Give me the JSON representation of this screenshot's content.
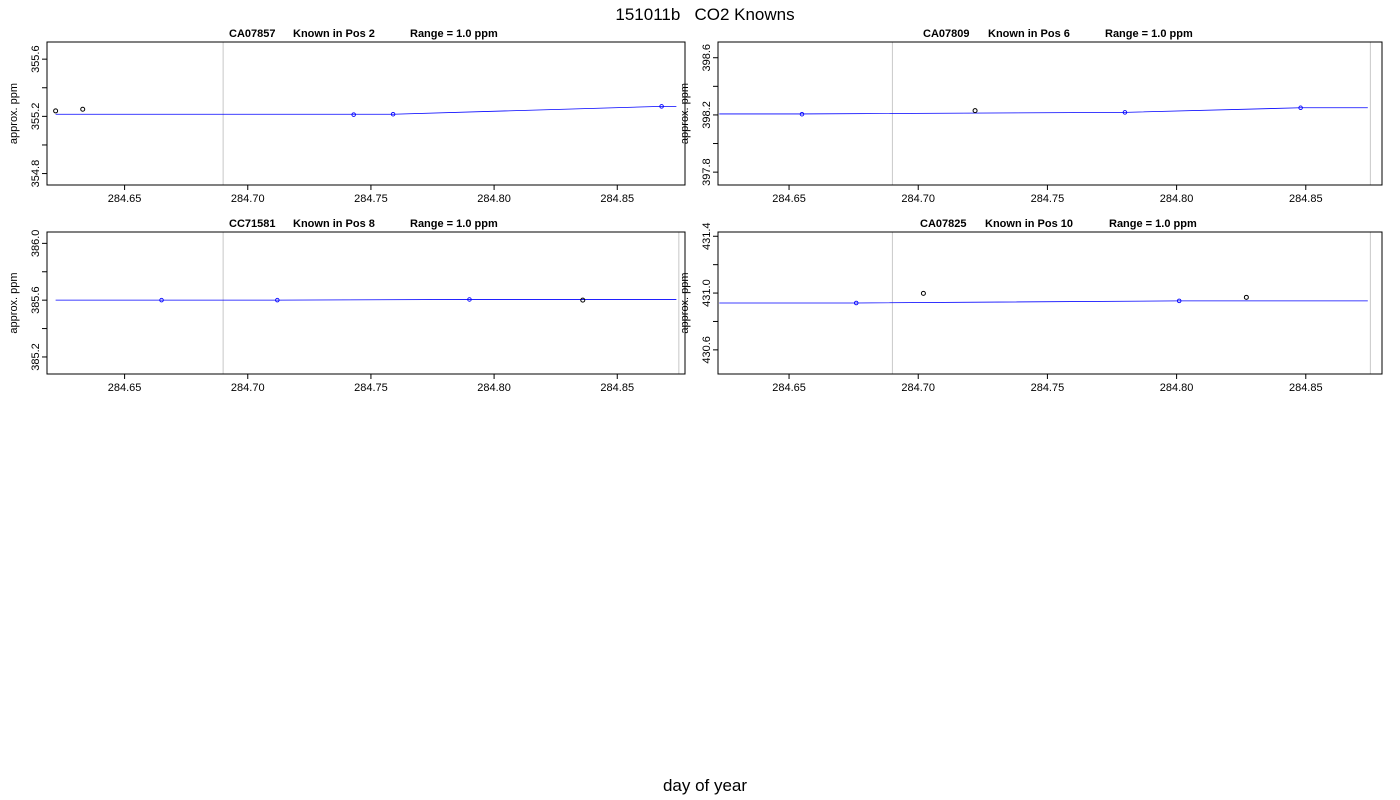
{
  "page": {
    "title": "151011b   CO2 Knowns",
    "xlabel": "day of year"
  },
  "colors": {
    "fit_line": "#0000ff",
    "fit_point": "#0000ff",
    "raw_point": "#000000",
    "vline": "#c8c8c8",
    "frame": "#000000"
  },
  "chart_data": [
    {
      "type": "scatter",
      "title_parts": [
        "CA07857",
        "Known in Pos 2",
        "Range = 1.0 ppm"
      ],
      "ylabel": "approx. ppm",
      "xlim": [
        284.6185,
        284.8775
      ],
      "ylim": [
        354.72,
        355.72
      ],
      "xticks": [
        "284.65",
        "284.70",
        "284.75",
        "284.80",
        "284.85"
      ],
      "yticks": [
        "354.8",
        "355.2",
        "355.6"
      ],
      "vlines": [
        284.69
      ],
      "grid": false,
      "fit_line": {
        "x": [
          284.622,
          284.759,
          284.868,
          284.874
        ],
        "y": [
          355.215,
          355.215,
          355.27,
          355.27
        ]
      },
      "fit_points": {
        "x": [
          284.743,
          284.759,
          284.868
        ],
        "y": [
          355.212,
          355.215,
          355.27
        ]
      },
      "raw_points": {
        "x": [
          284.622,
          284.633
        ],
        "y": [
          355.238,
          355.25
        ]
      }
    },
    {
      "type": "scatter",
      "title_parts": [
        "CA07809",
        "Known in Pos 6",
        "Range = 1.0 ppm"
      ],
      "ylabel": "approx. ppm",
      "xlim": [
        284.6225,
        284.8795
      ],
      "ylim": [
        397.71,
        398.71
      ],
      "xticks": [
        "284.65",
        "284.70",
        "284.75",
        "284.80",
        "284.85"
      ],
      "yticks": [
        "397.8",
        "398.2",
        "398.6"
      ],
      "vlines": [
        284.69,
        284.875
      ],
      "grid": false,
      "fit_line": {
        "x": [
          284.623,
          284.655,
          284.78,
          284.848,
          284.874
        ],
        "y": [
          398.207,
          398.207,
          398.218,
          398.25,
          398.25
        ]
      },
      "fit_points": {
        "x": [
          284.655,
          284.78,
          284.848
        ],
        "y": [
          398.205,
          398.218,
          398.25
        ]
      },
      "raw_points": {
        "x": [
          284.722
        ],
        "y": [
          398.23
        ]
      }
    },
    {
      "type": "scatter",
      "title_parts": [
        "CC71581",
        "Known in Pos 8",
        "Range = 1.0 ppm"
      ],
      "ylabel": "approx. ppm",
      "xlim": [
        284.6185,
        284.8775
      ],
      "ylim": [
        385.08,
        386.08
      ],
      "xticks": [
        "284.65",
        "284.70",
        "284.75",
        "284.80",
        "284.85"
      ],
      "yticks": [
        "385.2",
        "385.6",
        "386.0"
      ],
      "vlines": [
        284.69,
        284.875
      ],
      "grid": false,
      "fit_line": {
        "x": [
          284.622,
          284.712,
          284.79,
          284.874
        ],
        "y": [
          385.6,
          385.6,
          385.605,
          385.605
        ]
      },
      "fit_points": {
        "x": [
          284.665,
          284.712,
          284.79
        ],
        "y": [
          385.6,
          385.6,
          385.605
        ]
      },
      "raw_points": {
        "x": [
          284.836
        ],
        "y": [
          385.6
        ]
      }
    },
    {
      "type": "scatter",
      "title_parts": [
        "CA07825",
        "Known in Pos 10",
        "Range = 1.0 ppm"
      ],
      "ylabel": "approx. ppm",
      "xlim": [
        284.6225,
        284.8795
      ],
      "ylim": [
        430.43,
        431.43
      ],
      "xticks": [
        "284.65",
        "284.70",
        "284.75",
        "284.80",
        "284.85"
      ],
      "yticks": [
        "430.6",
        "431.0",
        "431.4"
      ],
      "vlines": [
        284.69,
        284.875
      ],
      "grid": false,
      "fit_line": {
        "x": [
          284.623,
          284.676,
          284.801,
          284.874
        ],
        "y": [
          430.93,
          430.93,
          430.945,
          430.945
        ]
      },
      "fit_points": {
        "x": [
          284.676,
          284.801
        ],
        "y": [
          430.93,
          430.945
        ]
      },
      "raw_points": {
        "x": [
          284.702,
          284.827
        ],
        "y": [
          430.998,
          430.97
        ]
      }
    }
  ]
}
